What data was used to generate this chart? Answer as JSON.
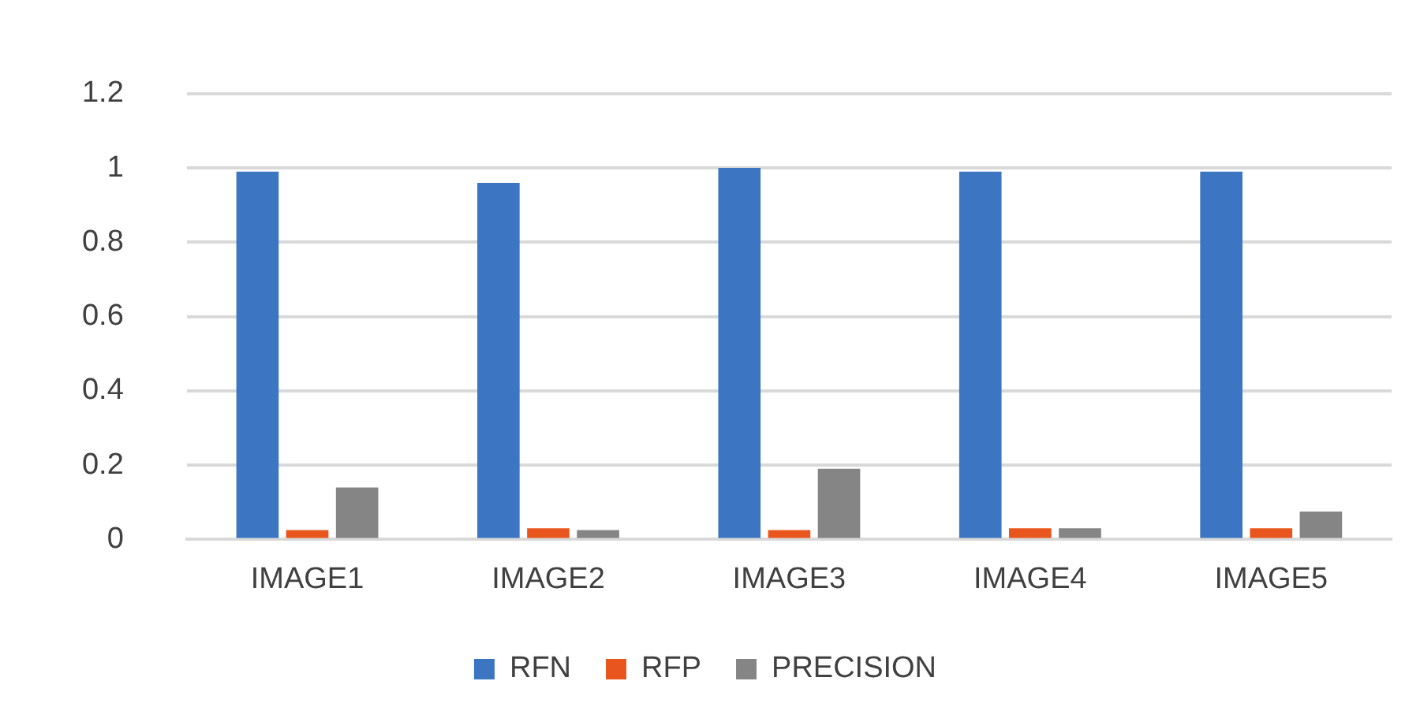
{
  "chart_data": {
    "type": "bar",
    "categories": [
      "IMAGE1",
      "IMAGE2",
      "IMAGE3",
      "IMAGE4",
      "IMAGE5"
    ],
    "series": [
      {
        "name": "RFN",
        "color": "#3c76c2",
        "values": [
          0.99,
          0.96,
          1.0,
          0.99,
          0.99
        ]
      },
      {
        "name": "RFP",
        "color": "#e8561e",
        "values": [
          0.025,
          0.03,
          0.025,
          0.03,
          0.03
        ]
      },
      {
        "name": "PRECISION",
        "color": "#858585",
        "values": [
          0.14,
          0.025,
          0.19,
          0.03,
          0.075
        ]
      }
    ],
    "ylim": [
      0,
      1.2
    ],
    "yticks": [
      0,
      0.2,
      0.4,
      0.6,
      0.8,
      1,
      1.2
    ],
    "grid": "y",
    "legend": "bottom"
  }
}
